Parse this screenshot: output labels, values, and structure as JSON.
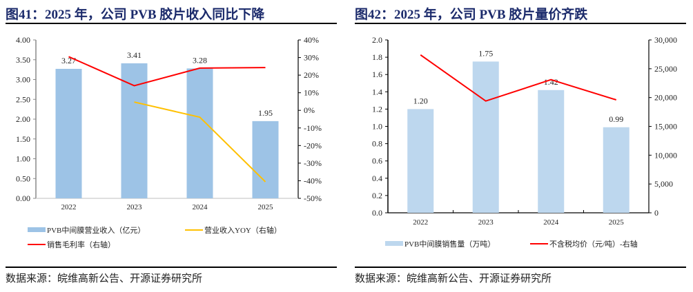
{
  "chart_data": [
    {
      "type": "bar+line",
      "title": "图41：2025 年，公司 PVB 胶片收入同比下降",
      "source": "数据来源：皖维高新公告、开源证券研究所",
      "categories": [
        "2022",
        "2023",
        "2024",
        "2025"
      ],
      "left_axis": {
        "ylim": [
          0,
          4
        ],
        "ticks": [
          "0.00",
          "0.50",
          "1.00",
          "1.50",
          "2.00",
          "2.50",
          "3.00",
          "3.50",
          "4.00"
        ]
      },
      "right_axis": {
        "ylim": [
          -50,
          40
        ],
        "ticks": [
          "-50%",
          "-40%",
          "-30%",
          "-20%",
          "-10%",
          "0%",
          "10%",
          "20%",
          "30%",
          "40%"
        ]
      },
      "series": [
        {
          "name": "PVB中间膜营业收入（亿元）",
          "kind": "bar",
          "axis": "left",
          "color": "#9dc3e6",
          "values": [
            3.27,
            3.41,
            3.28,
            1.95
          ],
          "labels": [
            "3.27",
            "3.41",
            "3.28",
            "1.95"
          ]
        },
        {
          "name": "营业收入YOY（右轴）",
          "kind": "line",
          "axis": "right",
          "color": "#ffc000",
          "values": [
            null,
            4.7,
            -3.9,
            -40.6
          ]
        },
        {
          "name": "销售毛利率（右轴）",
          "kind": "line",
          "axis": "right",
          "color": "#ff0000",
          "values": [
            30.5,
            14.0,
            24.0,
            24.3
          ]
        }
      ],
      "legend": "bottom"
    },
    {
      "type": "bar+line",
      "title": "图42：2025 年，公司 PVB 胶片量价齐跌",
      "source": "数据来源：皖维高新公告、开源证券研究所",
      "categories": [
        "2022",
        "2023",
        "2024",
        "2025"
      ],
      "left_axis": {
        "ylim": [
          0,
          2
        ],
        "ticks": [
          "0.0",
          "0.2",
          "0.4",
          "0.6",
          "0.8",
          "1.0",
          "1.2",
          "1.4",
          "1.6",
          "1.8",
          "2.0"
        ]
      },
      "right_axis": {
        "ylim": [
          0,
          30000
        ],
        "ticks": [
          "0",
          "5,000",
          "10,000",
          "15,000",
          "20,000",
          "25,000",
          "30,000"
        ]
      },
      "series": [
        {
          "name": "PVB中间膜销售量（万吨）",
          "kind": "bar",
          "axis": "left",
          "color": "#bdd7ee",
          "values": [
            1.2,
            1.75,
            1.42,
            0.99
          ],
          "labels": [
            "1.20",
            "1.75",
            "1.42",
            "0.99"
          ]
        },
        {
          "name": "不含税均价（元/吨）-右轴",
          "kind": "line",
          "axis": "right",
          "color": "#ff0000",
          "values": [
            27400,
            19400,
            23100,
            19600
          ]
        }
      ],
      "legend": "bottom"
    }
  ]
}
